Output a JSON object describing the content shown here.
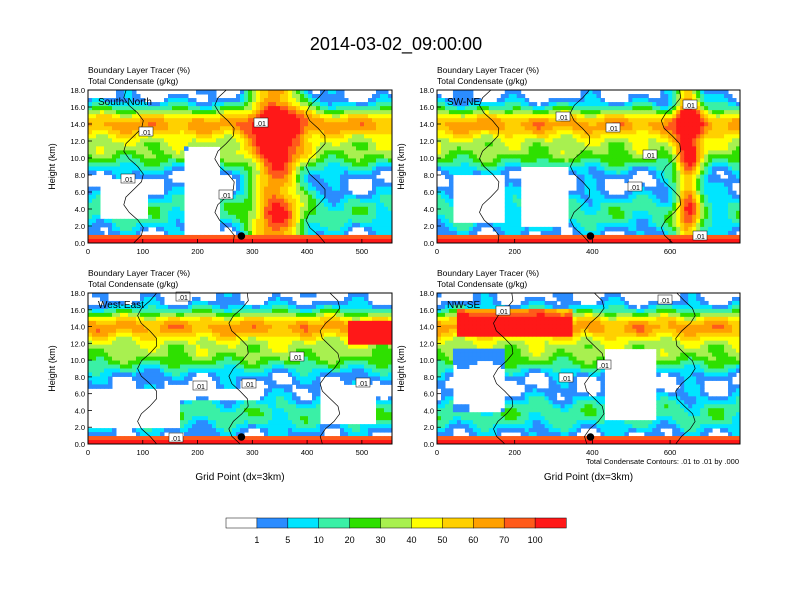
{
  "figure": {
    "title": "2014-03-02_09:00:00",
    "colorbar": {
      "colors": [
        "#ffffff",
        "#2b8cff",
        "#00e5ff",
        "#3af0a6",
        "#2ee000",
        "#a8f050",
        "#ffff00",
        "#ffd000",
        "#ffa000",
        "#ff5a1a",
        "#ff1818"
      ],
      "labels": [
        "1",
        "5",
        "10",
        "20",
        "30",
        "40",
        "50",
        "60",
        "70",
        "100"
      ]
    },
    "contour_note": "Total Condensate Contours: .01 to .01 by .000"
  },
  "chart_data": [
    {
      "type": "heatmap",
      "panel": "South-North",
      "title_line1": "Boundary Layer Tracer    (%)",
      "title_line2": "Total Condensate   (g/kg)",
      "ylabel": "Height (km)",
      "xlabel": "",
      "xlim": [
        0,
        555
      ],
      "ylim": [
        0,
        18
      ],
      "xticks": [
        "0",
        "100",
        "200",
        "300",
        "400",
        "500"
      ],
      "yticks": [
        "0.0",
        "2.0",
        "4.0",
        "6.0",
        "8.0",
        "10.0",
        "12.0",
        "14.0",
        "16.0",
        "18.0"
      ],
      "marker_x": 280,
      "contour_labels": [
        ".01",
        ".01",
        ".01",
        ".01"
      ]
    },
    {
      "type": "heatmap",
      "panel": "SW-NE",
      "title_line1": "Boundary Layer Tracer    (%)",
      "title_line2": "Total Condensate   (g/kg)",
      "ylabel": "Height (km)",
      "xlabel": "",
      "xlim": [
        0,
        780
      ],
      "ylim": [
        0,
        18
      ],
      "xticks": [
        "0",
        "200",
        "400",
        "600"
      ],
      "yticks": [
        "0.0",
        "2.0",
        "4.0",
        "6.0",
        "8.0",
        "10.0",
        "12.0",
        "14.0",
        "16.0",
        "18.0"
      ],
      "marker_x": 395,
      "contour_labels": [
        ".01",
        ".01",
        ".01",
        ".01",
        ".01",
        ".01"
      ]
    },
    {
      "type": "heatmap",
      "panel": "West-East",
      "title_line1": "Boundary Layer Tracer    (%)",
      "title_line2": "Total Condensate   (g/kg)",
      "ylabel": "Height (km)",
      "xlabel": "Grid Point (dx=3km)",
      "xlim": [
        0,
        555
      ],
      "ylim": [
        0,
        18
      ],
      "xticks": [
        "0",
        "100",
        "200",
        "300",
        "400",
        "500"
      ],
      "yticks": [
        "0.0",
        "2.0",
        "4.0",
        "6.0",
        "8.0",
        "10.0",
        "12.0",
        "14.0",
        "16.0",
        "18.0"
      ],
      "marker_x": 280,
      "contour_labels": [
        ".01",
        ".01",
        ".01",
        ".01",
        ".01",
        ".01"
      ]
    },
    {
      "type": "heatmap",
      "panel": "NW-SE",
      "title_line1": "Boundary Layer Tracer    (%)",
      "title_line2": "Total Condensate   (g/kg)",
      "ylabel": "Height (km)",
      "xlabel": "Grid Point (dx=3km)",
      "xlim": [
        0,
        780
      ],
      "ylim": [
        0,
        18
      ],
      "xticks": [
        "0",
        "200",
        "400",
        "600"
      ],
      "yticks": [
        "0.0",
        "2.0",
        "4.0",
        "6.0",
        "8.0",
        "10.0",
        "12.0",
        "14.0",
        "16.0",
        "18.0"
      ],
      "marker_x": 395,
      "contour_labels": [
        ".01",
        ".01",
        ".01",
        ".01"
      ]
    }
  ]
}
